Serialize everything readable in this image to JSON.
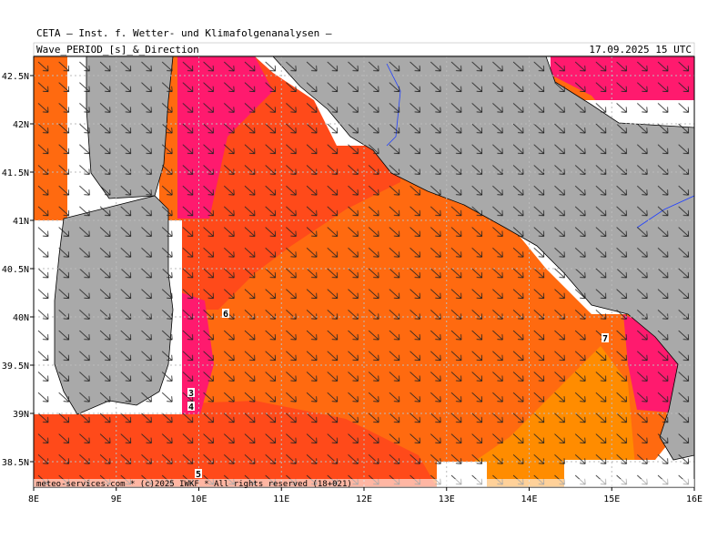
{
  "header": {
    "title": "CETA – Inst. f. Wetter- und Klimafolgenanalysen –",
    "product": "Wave_PERIOD_[s]_&_Direction",
    "date": "17.09.2025 15 UTC"
  },
  "lat_labels": [
    "42.5N",
    "42N",
    "41.5N",
    "41N",
    "40.5N",
    "40N",
    "39.5N",
    "39N",
    "38.5N"
  ],
  "lon_labels": [
    "8E",
    "9E",
    "10E",
    "11E",
    "12E",
    "13E",
    "14E",
    "15E",
    "16E"
  ],
  "contour_labels": [
    "6",
    "3",
    "4",
    "5",
    "7"
  ],
  "footer": "meteo-services.com * (c)2025 IWKF * All rights reserved (18+021)"
}
